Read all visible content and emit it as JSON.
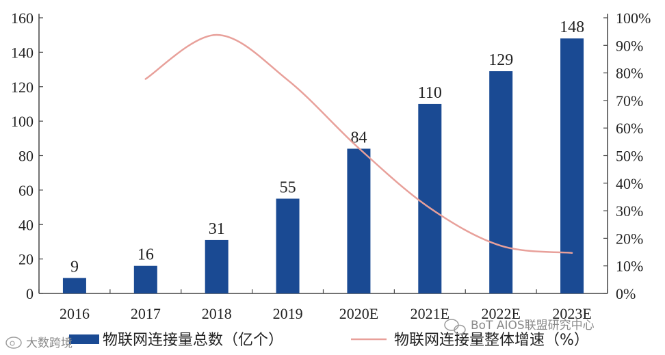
{
  "chart_data": {
    "type": "bar",
    "categories": [
      "2016",
      "2017",
      "2018",
      "2019",
      "2020E",
      "2021E",
      "2022E",
      "2023E"
    ],
    "series": [
      {
        "name": "物联网连接量总数（亿个）",
        "type": "bar",
        "axis": "left",
        "values": [
          9,
          16,
          31,
          55,
          84,
          110,
          129,
          148
        ],
        "data_labels": [
          "9",
          "16",
          "31",
          "55",
          "84",
          "110",
          "129",
          "148"
        ],
        "color": "#1a4a93"
      },
      {
        "name": "物联网连接量整体增速（%）",
        "type": "line",
        "axis": "right",
        "smooth": true,
        "values": [
          null,
          77.8,
          93.8,
          77.4,
          52.7,
          31.0,
          17.3,
          14.7
        ],
        "color": "#e8a09a"
      }
    ],
    "ylim": [
      0,
      160
    ],
    "y_ticks": [
      "0",
      "20",
      "40",
      "60",
      "80",
      "100",
      "120",
      "140",
      "160"
    ],
    "y2lim": [
      0,
      100
    ],
    "y2_ticks": [
      "0%",
      "10%",
      "20%",
      "30%",
      "40%",
      "50%",
      "60%",
      "70%",
      "80%",
      "90%",
      "100%"
    ],
    "grid": false,
    "legend_position": "bottom"
  },
  "legend": {
    "bar_label": "物联网连接量总数（亿个）",
    "line_label": "物联网连接量整体增速（%）"
  },
  "watermarks": {
    "top": "BoT AIOS联盟研究中心",
    "bottom_left": "大数跨境"
  }
}
